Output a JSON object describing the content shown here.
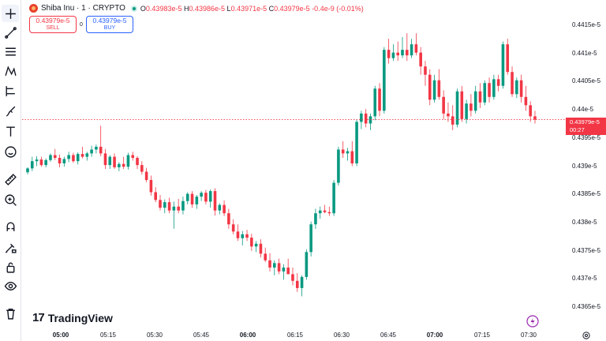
{
  "symbol": {
    "name": "Shiba Inu · 1 · CRYPTO",
    "ohlc": {
      "open_label": "O",
      "open": "0.43983e-5",
      "high_label": "H",
      "high": "0.43986e-5",
      "low_label": "L",
      "low": "0.43971e-5",
      "close_label": "C",
      "close": "0.43979e-5",
      "change": "-0.4e-9 (-0.01%)"
    },
    "colors": {
      "logo": "#e8412b",
      "up": "#089981",
      "down": "#f23645"
    }
  },
  "trade": {
    "sell_price": "0.43979e-5",
    "sell_label": "SELL",
    "spread": "0",
    "buy_price": "0.43979e-5",
    "buy_label": "BUY"
  },
  "price_axis": {
    "ticks": [
      "0.4415e-5",
      "0.441e-5",
      "0.4405e-5",
      "0.44e-5",
      "0.4395e-5",
      "0.439e-5",
      "0.4385e-5",
      "0.438e-5",
      "0.4375e-5",
      "0.437e-5",
      "0.4365e-5"
    ],
    "current_price": "0.43979e-5",
    "countdown": "00:27"
  },
  "time_axis": {
    "ticks": [
      "05:00",
      "05:15",
      "05:30",
      "05:45",
      "06:00",
      "06:15",
      "06:30",
      "06:45",
      "07:00",
      "07:15",
      "07:30"
    ],
    "bold": [
      "05:00",
      "06:00",
      "07:00"
    ]
  },
  "branding": {
    "logo_text": "TradingView"
  },
  "toolbar": {
    "tools": [
      "crosshair-icon",
      "trendline-icon",
      "fib-icon",
      "pattern-icon",
      "projection-icon",
      "brush-icon",
      "text-icon",
      "emoji-icon",
      "ruler-icon",
      "zoom-in-icon",
      "magnet-icon",
      "lock-drawing-icon",
      "lock-icon",
      "eye-icon",
      "trash-icon"
    ]
  },
  "chart_data": {
    "type": "candlestick",
    "x_range": [
      "04:57",
      "07:33"
    ],
    "ylim": [
      0.43625,
      0.44175
    ],
    "y_unit": "e-5",
    "candles_approx": [
      [
        0.43884,
        0.43893,
        0.4388,
        0.43891
      ],
      [
        0.43891,
        0.43912,
        0.43886,
        0.43904
      ],
      [
        0.43904,
        0.43913,
        0.43895,
        0.43907
      ],
      [
        0.43907,
        0.43912,
        0.43894,
        0.43897
      ],
      [
        0.43897,
        0.43909,
        0.43893,
        0.43906
      ],
      [
        0.43906,
        0.43918,
        0.43903,
        0.43915
      ],
      [
        0.43915,
        0.43926,
        0.43906,
        0.4391
      ],
      [
        0.4391,
        0.43916,
        0.43893,
        0.439
      ],
      [
        0.439,
        0.43912,
        0.43894,
        0.43908
      ],
      [
        0.43908,
        0.43921,
        0.43902,
        0.43915
      ],
      [
        0.43915,
        0.43919,
        0.43901,
        0.43904
      ],
      [
        0.43904,
        0.4392,
        0.43898,
        0.43917
      ],
      [
        0.43917,
        0.4393,
        0.43909,
        0.43912
      ],
      [
        0.43912,
        0.43921,
        0.43905,
        0.43918
      ],
      [
        0.43918,
        0.43932,
        0.43912,
        0.43925
      ],
      [
        0.43925,
        0.43934,
        0.43918,
        0.4393
      ],
      [
        0.4393,
        0.43968,
        0.43913,
        0.43918
      ],
      [
        0.43918,
        0.43926,
        0.4389,
        0.43897
      ],
      [
        0.43897,
        0.43915,
        0.4389,
        0.43912
      ],
      [
        0.43912,
        0.43918,
        0.4389,
        0.43893
      ],
      [
        0.43893,
        0.43902,
        0.43886,
        0.43899
      ],
      [
        0.43899,
        0.43912,
        0.4389,
        0.43894
      ],
      [
        0.43894,
        0.43919,
        0.43889,
        0.43915
      ],
      [
        0.43915,
        0.43921,
        0.43905,
        0.4391
      ],
      [
        0.4391,
        0.43913,
        0.4389,
        0.43897
      ],
      [
        0.43897,
        0.43904,
        0.4388,
        0.43885
      ],
      [
        0.43885,
        0.43892,
        0.43866,
        0.4387
      ],
      [
        0.4387,
        0.43878,
        0.43842,
        0.43848
      ],
      [
        0.43848,
        0.43857,
        0.4383,
        0.43834
      ],
      [
        0.43834,
        0.43843,
        0.43815,
        0.4382
      ],
      [
        0.4382,
        0.43835,
        0.4381,
        0.4383
      ],
      [
        0.4383,
        0.43838,
        0.4381,
        0.43815
      ],
      [
        0.43815,
        0.43831,
        0.43782,
        0.43822
      ],
      [
        0.43822,
        0.43836,
        0.4381,
        0.43815
      ],
      [
        0.43815,
        0.4384,
        0.43808,
        0.43832
      ],
      [
        0.43832,
        0.43848,
        0.43826,
        0.43845
      ],
      [
        0.43845,
        0.4385,
        0.4382,
        0.43826
      ],
      [
        0.43826,
        0.43843,
        0.43818,
        0.4384
      ],
      [
        0.4384,
        0.4385,
        0.43832,
        0.43847
      ],
      [
        0.43847,
        0.43852,
        0.43826,
        0.43831
      ],
      [
        0.43831,
        0.43853,
        0.4382,
        0.4385
      ],
      [
        0.4385,
        0.43855,
        0.43806,
        0.43815
      ],
      [
        0.43815,
        0.43828,
        0.43808,
        0.43825
      ],
      [
        0.43825,
        0.43833,
        0.43805,
        0.4381
      ],
      [
        0.4381,
        0.43818,
        0.43782,
        0.4379
      ],
      [
        0.4379,
        0.43799,
        0.43772,
        0.43777
      ],
      [
        0.43777,
        0.4379,
        0.4376,
        0.43765
      ],
      [
        0.43765,
        0.43778,
        0.43752,
        0.43772
      ],
      [
        0.43772,
        0.4378,
        0.4376,
        0.43766
      ],
      [
        0.43766,
        0.43773,
        0.43742,
        0.4375
      ],
      [
        0.4375,
        0.4376,
        0.4374,
        0.43755
      ],
      [
        0.43755,
        0.43763,
        0.4373,
        0.43737
      ],
      [
        0.43737,
        0.43748,
        0.43722,
        0.43725
      ],
      [
        0.43725,
        0.43738,
        0.43705,
        0.43712
      ],
      [
        0.43712,
        0.43725,
        0.43698,
        0.4372
      ],
      [
        0.4372,
        0.43728,
        0.437,
        0.43705
      ],
      [
        0.43705,
        0.43718,
        0.4369,
        0.43712
      ],
      [
        0.43712,
        0.43728,
        0.43706,
        0.437
      ],
      [
        0.437,
        0.43712,
        0.4368,
        0.43688
      ],
      [
        0.43688,
        0.43702,
        0.43668,
        0.43675
      ],
      [
        0.43675,
        0.43698,
        0.4366,
        0.43695
      ],
      [
        0.43695,
        0.43745,
        0.4369,
        0.4374
      ],
      [
        0.4374,
        0.43795,
        0.43732,
        0.4379
      ],
      [
        0.4379,
        0.43818,
        0.43782,
        0.4381
      ],
      [
        0.4381,
        0.43822,
        0.438,
        0.43815
      ],
      [
        0.43815,
        0.43825,
        0.4381,
        0.43812
      ],
      [
        0.43812,
        0.43822,
        0.43805,
        0.4381
      ],
      [
        0.4381,
        0.4387,
        0.43805,
        0.43865
      ],
      [
        0.43865,
        0.4393,
        0.4386,
        0.43925
      ],
      [
        0.43925,
        0.4394,
        0.4391,
        0.43918
      ],
      [
        0.43918,
        0.43928,
        0.43905,
        0.43922
      ],
      [
        0.43922,
        0.4394,
        0.43895,
        0.439
      ],
      [
        0.439,
        0.4398,
        0.43895,
        0.43975
      ],
      [
        0.43975,
        0.43995,
        0.43962,
        0.4399
      ],
      [
        0.4399,
        0.43998,
        0.43965,
        0.43972
      ],
      [
        0.43972,
        0.4399,
        0.4396,
        0.43985
      ],
      [
        0.43985,
        0.4404,
        0.43978,
        0.44035
      ],
      [
        0.44035,
        0.44045,
        0.43985,
        0.43995
      ],
      [
        0.43995,
        0.4411,
        0.4399,
        0.44105
      ],
      [
        0.44105,
        0.44125,
        0.4408,
        0.4409
      ],
      [
        0.4409,
        0.44115,
        0.44085,
        0.441
      ],
      [
        0.441,
        0.4412,
        0.44085,
        0.44095
      ],
      [
        0.44095,
        0.44128,
        0.4409,
        0.44105
      ],
      [
        0.44105,
        0.44135,
        0.44085,
        0.44095
      ],
      [
        0.44095,
        0.44125,
        0.4409,
        0.44115
      ],
      [
        0.44115,
        0.44135,
        0.44095,
        0.441
      ],
      [
        0.441,
        0.4411,
        0.4406,
        0.44075
      ],
      [
        0.44075,
        0.44085,
        0.4404,
        0.4406
      ],
      [
        0.4406,
        0.4407,
        0.44005,
        0.44015
      ],
      [
        0.44015,
        0.4406,
        0.4401,
        0.4405
      ],
      [
        0.4405,
        0.4407,
        0.44015,
        0.4402
      ],
      [
        0.4402,
        0.44032,
        0.4398,
        0.4399
      ],
      [
        0.4399,
        0.4401,
        0.43975,
        0.43985
      ],
      [
        0.43985,
        0.44005,
        0.4396,
        0.4397
      ],
      [
        0.4397,
        0.44035,
        0.43965,
        0.4403
      ],
      [
        0.4403,
        0.4404,
        0.43975,
        0.4398
      ],
      [
        0.4398,
        0.44015,
        0.43972,
        0.44008
      ],
      [
        0.44008,
        0.44025,
        0.43985,
        0.43995
      ],
      [
        0.43995,
        0.4404,
        0.4399,
        0.4403
      ],
      [
        0.4403,
        0.44045,
        0.44,
        0.4401
      ],
      [
        0.4401,
        0.4405,
        0.44005,
        0.44045
      ],
      [
        0.44045,
        0.44055,
        0.4401,
        0.4402
      ],
      [
        0.4402,
        0.4406,
        0.44015,
        0.44052
      ],
      [
        0.44052,
        0.4406,
        0.4403,
        0.4404
      ],
      [
        0.4404,
        0.4412,
        0.44035,
        0.44115
      ],
      [
        0.44115,
        0.44125,
        0.4406,
        0.44065
      ],
      [
        0.44065,
        0.44075,
        0.4402,
        0.44025
      ],
      [
        0.44025,
        0.44055,
        0.44018,
        0.4405
      ],
      [
        0.4405,
        0.4406,
        0.4401,
        0.4402
      ],
      [
        0.4402,
        0.4404,
        0.43995,
        0.44005
      ],
      [
        0.44005,
        0.44012,
        0.43975,
        0.43985
      ],
      [
        0.43985,
        0.43995,
        0.43972,
        0.43979
      ]
    ]
  }
}
